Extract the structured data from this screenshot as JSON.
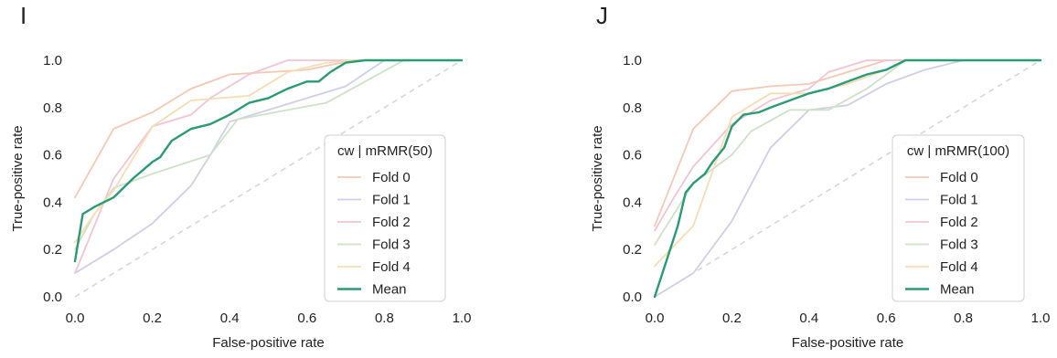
{
  "chart_data": [
    {
      "type": "line",
      "panel_label": "I",
      "xlabel": "False-positive rate",
      "ylabel": "True-positive rate",
      "xlim": [
        0.0,
        1.0
      ],
      "ylim": [
        0.0,
        1.0
      ],
      "xticks": [
        "0.0",
        "0.2",
        "0.4",
        "0.6",
        "0.8",
        "1.0"
      ],
      "yticks": [
        "0.0",
        "0.2",
        "0.4",
        "0.6",
        "0.8",
        "1.0"
      ],
      "grid": false,
      "legend": {
        "title": "cw | mRMR(50)",
        "placement": "lower-right"
      },
      "diagonal": {
        "style": "dashed",
        "color": "#d4d8de"
      },
      "series": [
        {
          "name": "Fold 0",
          "color": "#f6c8b4",
          "x": [
            0.0,
            0.1,
            0.2,
            0.3,
            0.4,
            0.5,
            0.6,
            0.72,
            1.0
          ],
          "y": [
            0.42,
            0.71,
            0.78,
            0.88,
            0.94,
            0.95,
            0.96,
            1.0,
            1.0
          ]
        },
        {
          "name": "Fold 1",
          "color": "#cfcfea",
          "x": [
            0.0,
            0.1,
            0.2,
            0.3,
            0.35,
            0.4,
            0.5,
            0.6,
            0.7,
            0.8,
            1.0
          ],
          "y": [
            0.1,
            0.2,
            0.31,
            0.47,
            0.6,
            0.74,
            0.79,
            0.84,
            0.89,
            1.0,
            1.0
          ]
        },
        {
          "name": "Fold 2",
          "color": "#f3c4d2",
          "x": [
            0.0,
            0.05,
            0.1,
            0.2,
            0.3,
            0.35,
            0.45,
            0.55,
            0.7,
            1.0
          ],
          "y": [
            0.1,
            0.3,
            0.5,
            0.72,
            0.77,
            0.84,
            0.94,
            1.0,
            1.0,
            1.0
          ]
        },
        {
          "name": "Fold 3",
          "color": "#cce3c6",
          "x": [
            0.0,
            0.05,
            0.1,
            0.2,
            0.35,
            0.42,
            0.55,
            0.65,
            0.75,
            0.85,
            1.0
          ],
          "y": [
            0.2,
            0.35,
            0.46,
            0.52,
            0.6,
            0.75,
            0.79,
            0.82,
            0.91,
            1.0,
            1.0
          ]
        },
        {
          "name": "Fold 4",
          "color": "#f6ddb4",
          "x": [
            0.0,
            0.05,
            0.1,
            0.2,
            0.3,
            0.45,
            0.55,
            0.65,
            0.72,
            1.0
          ],
          "y": [
            0.23,
            0.35,
            0.45,
            0.72,
            0.83,
            0.85,
            0.95,
            0.99,
            1.0,
            1.0
          ]
        },
        {
          "name": "Mean",
          "color": "#2a9b72",
          "x": [
            0.0,
            0.02,
            0.05,
            0.1,
            0.15,
            0.2,
            0.22,
            0.25,
            0.3,
            0.35,
            0.4,
            0.45,
            0.5,
            0.55,
            0.6,
            0.63,
            0.66,
            0.7,
            0.75,
            1.0
          ],
          "y": [
            0.15,
            0.35,
            0.38,
            0.42,
            0.5,
            0.57,
            0.59,
            0.66,
            0.71,
            0.73,
            0.77,
            0.82,
            0.84,
            0.88,
            0.91,
            0.91,
            0.95,
            0.99,
            1.0,
            1.0
          ]
        }
      ]
    },
    {
      "type": "line",
      "panel_label": "J",
      "xlabel": "False-positive rate",
      "ylabel": "True-positive rate",
      "xlim": [
        0.0,
        1.0
      ],
      "ylim": [
        0.0,
        1.0
      ],
      "xticks": [
        "0.0",
        "0.2",
        "0.4",
        "0.6",
        "0.8",
        "1.0"
      ],
      "yticks": [
        "0.0",
        "0.2",
        "0.4",
        "0.6",
        "0.8",
        "1.0"
      ],
      "grid": false,
      "legend": {
        "title": "cw | mRMR(100)",
        "placement": "lower-right"
      },
      "diagonal": {
        "style": "dashed",
        "color": "#d4d8de"
      },
      "series": [
        {
          "name": "Fold 0",
          "color": "#f6c8b4",
          "x": [
            0.0,
            0.1,
            0.2,
            0.3,
            0.4,
            0.5,
            0.6,
            1.0
          ],
          "y": [
            0.3,
            0.71,
            0.87,
            0.89,
            0.9,
            0.95,
            1.0,
            1.0
          ]
        },
        {
          "name": "Fold 1",
          "color": "#cfcfea",
          "x": [
            0.0,
            0.1,
            0.2,
            0.3,
            0.4,
            0.5,
            0.6,
            0.7,
            0.8,
            1.0
          ],
          "y": [
            0.0,
            0.1,
            0.32,
            0.63,
            0.79,
            0.81,
            0.9,
            0.96,
            1.0,
            1.0
          ]
        },
        {
          "name": "Fold 2",
          "color": "#f3c4d2",
          "x": [
            0.0,
            0.05,
            0.1,
            0.2,
            0.3,
            0.4,
            0.45,
            0.55,
            0.6,
            1.0
          ],
          "y": [
            0.28,
            0.42,
            0.55,
            0.73,
            0.83,
            0.88,
            0.95,
            1.0,
            1.0,
            1.0
          ]
        },
        {
          "name": "Fold 3",
          "color": "#cce3c6",
          "x": [
            0.0,
            0.1,
            0.2,
            0.25,
            0.35,
            0.45,
            0.55,
            0.65,
            1.0
          ],
          "y": [
            0.22,
            0.48,
            0.6,
            0.7,
            0.79,
            0.79,
            0.88,
            1.0,
            1.0
          ]
        },
        {
          "name": "Fold 4",
          "color": "#f6ddb4",
          "x": [
            0.0,
            0.1,
            0.2,
            0.3,
            0.4,
            0.5,
            0.6,
            0.65,
            1.0
          ],
          "y": [
            0.13,
            0.3,
            0.76,
            0.86,
            0.86,
            0.9,
            0.96,
            1.0,
            1.0
          ]
        },
        {
          "name": "Mean",
          "color": "#2a9b72",
          "x": [
            0.0,
            0.03,
            0.06,
            0.08,
            0.1,
            0.13,
            0.15,
            0.18,
            0.2,
            0.23,
            0.27,
            0.3,
            0.35,
            0.4,
            0.45,
            0.5,
            0.55,
            0.6,
            0.65,
            1.0
          ],
          "y": [
            0.0,
            0.15,
            0.3,
            0.44,
            0.48,
            0.52,
            0.57,
            0.63,
            0.72,
            0.77,
            0.78,
            0.8,
            0.83,
            0.86,
            0.88,
            0.91,
            0.94,
            0.96,
            1.0,
            1.0
          ]
        }
      ]
    }
  ]
}
